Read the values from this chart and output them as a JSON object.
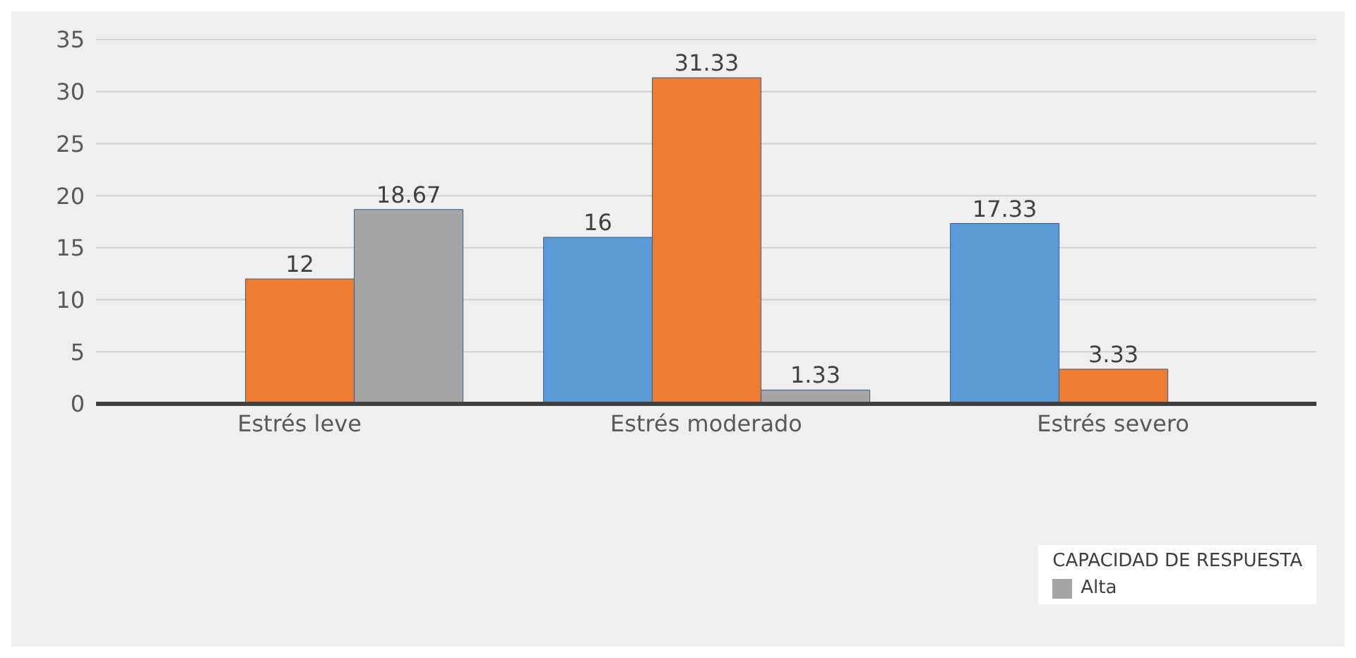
{
  "chart_data": {
    "type": "bar",
    "categories": [
      "Estrés leve",
      "Estrés moderado",
      "Estrés severo"
    ],
    "series": [
      {
        "color": "#5b9bd5",
        "values": [
          0,
          16,
          17.33
        ],
        "value_labels": [
          null,
          "16",
          "17.33"
        ]
      },
      {
        "color": "#ed7d31",
        "values": [
          12,
          31.33,
          3.33
        ],
        "value_labels": [
          "12",
          "31.33",
          "3.33"
        ]
      },
      {
        "name": "Alta",
        "color": "#a5a5a5",
        "values": [
          18.67,
          1.33,
          null
        ],
        "value_labels": [
          "18.67",
          "1.33",
          null
        ]
      }
    ],
    "ylim": [
      0,
      35
    ],
    "yticks": [
      0,
      5,
      10,
      15,
      20,
      25,
      30,
      35
    ],
    "grid": "y",
    "legend": "bottom right",
    "legend_title": "CAPACIDAD DE RESPUESTA"
  }
}
